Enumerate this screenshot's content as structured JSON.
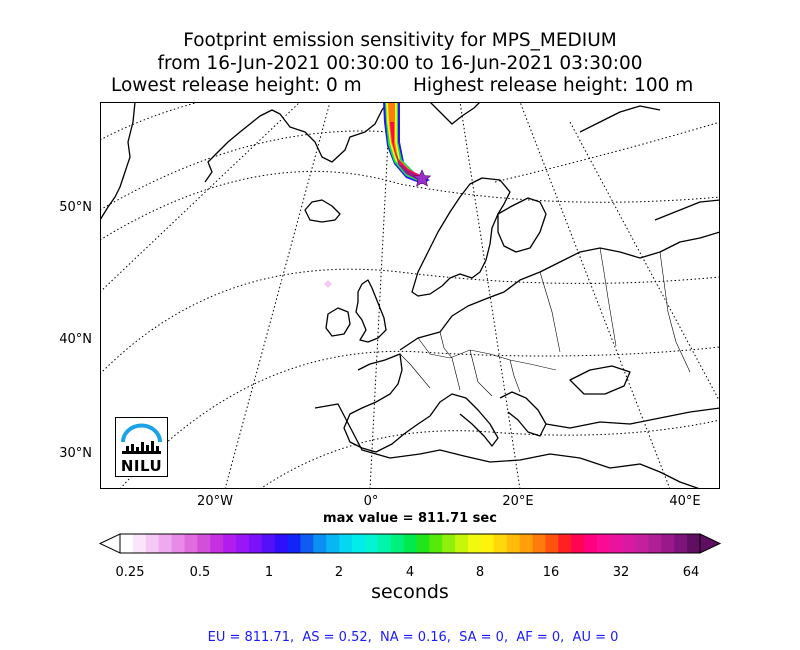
{
  "title": {
    "line1": "Footprint emission sensitivity for MPS_MEDIUM",
    "line2": "from 16-Jun-2021 00:30:00 to 16-Jun-2021 03:30:00",
    "lowest": "Lowest release height: 0 m",
    "highest": "Highest release height: 100 m"
  },
  "map": {
    "lat_labels": [
      "50°N",
      "40°N",
      "30°N"
    ],
    "lon_labels": [
      "20°W",
      "0°",
      "20°E",
      "40°E"
    ],
    "release_marker": "star-icon",
    "logo_text": "NILU",
    "colors": {
      "land_outline": "#000000",
      "background": "#ffffff",
      "marker": "#9b30c9"
    }
  },
  "max_value": "max value = 811.71 sec",
  "colorbar": {
    "ticks": [
      "0.25",
      "0.5",
      "1",
      "2",
      "4",
      "8",
      "16",
      "32",
      "64"
    ],
    "units": "seconds",
    "colors": [
      "#ffffff",
      "#fbe5fb",
      "#f5c9f5",
      "#efa9ef",
      "#e88be8",
      "#e06ce0",
      "#d24fd9",
      "#c430e0",
      "#b11cef",
      "#9a16f5",
      "#7b12f8",
      "#5510fa",
      "#2f10fb",
      "#1224f7",
      "#0f5cf2",
      "#0b8ff0",
      "#08b6f2",
      "#05d6f2",
      "#03ecec",
      "#02f4d3",
      "#00f5ac",
      "#00f07d",
      "#00e94d",
      "#20e51d",
      "#55ea0a",
      "#8ef00a",
      "#c6f60c",
      "#effa0e",
      "#fff20c",
      "#ffd80b",
      "#ffbc08",
      "#ffa00a",
      "#ff7b0d",
      "#ff520f",
      "#ff2024",
      "#ff0454",
      "#ff007f",
      "#fb0a96",
      "#ec12a0",
      "#d819a1",
      "#c41f9d",
      "#ae1e94",
      "#97198a",
      "#7f137c",
      "#5f0e62"
    ]
  },
  "regions": "EU = 811.71,  AS = 0.52,  NA = 0.16,  SA = 0,  AF = 0,  AU = 0"
}
